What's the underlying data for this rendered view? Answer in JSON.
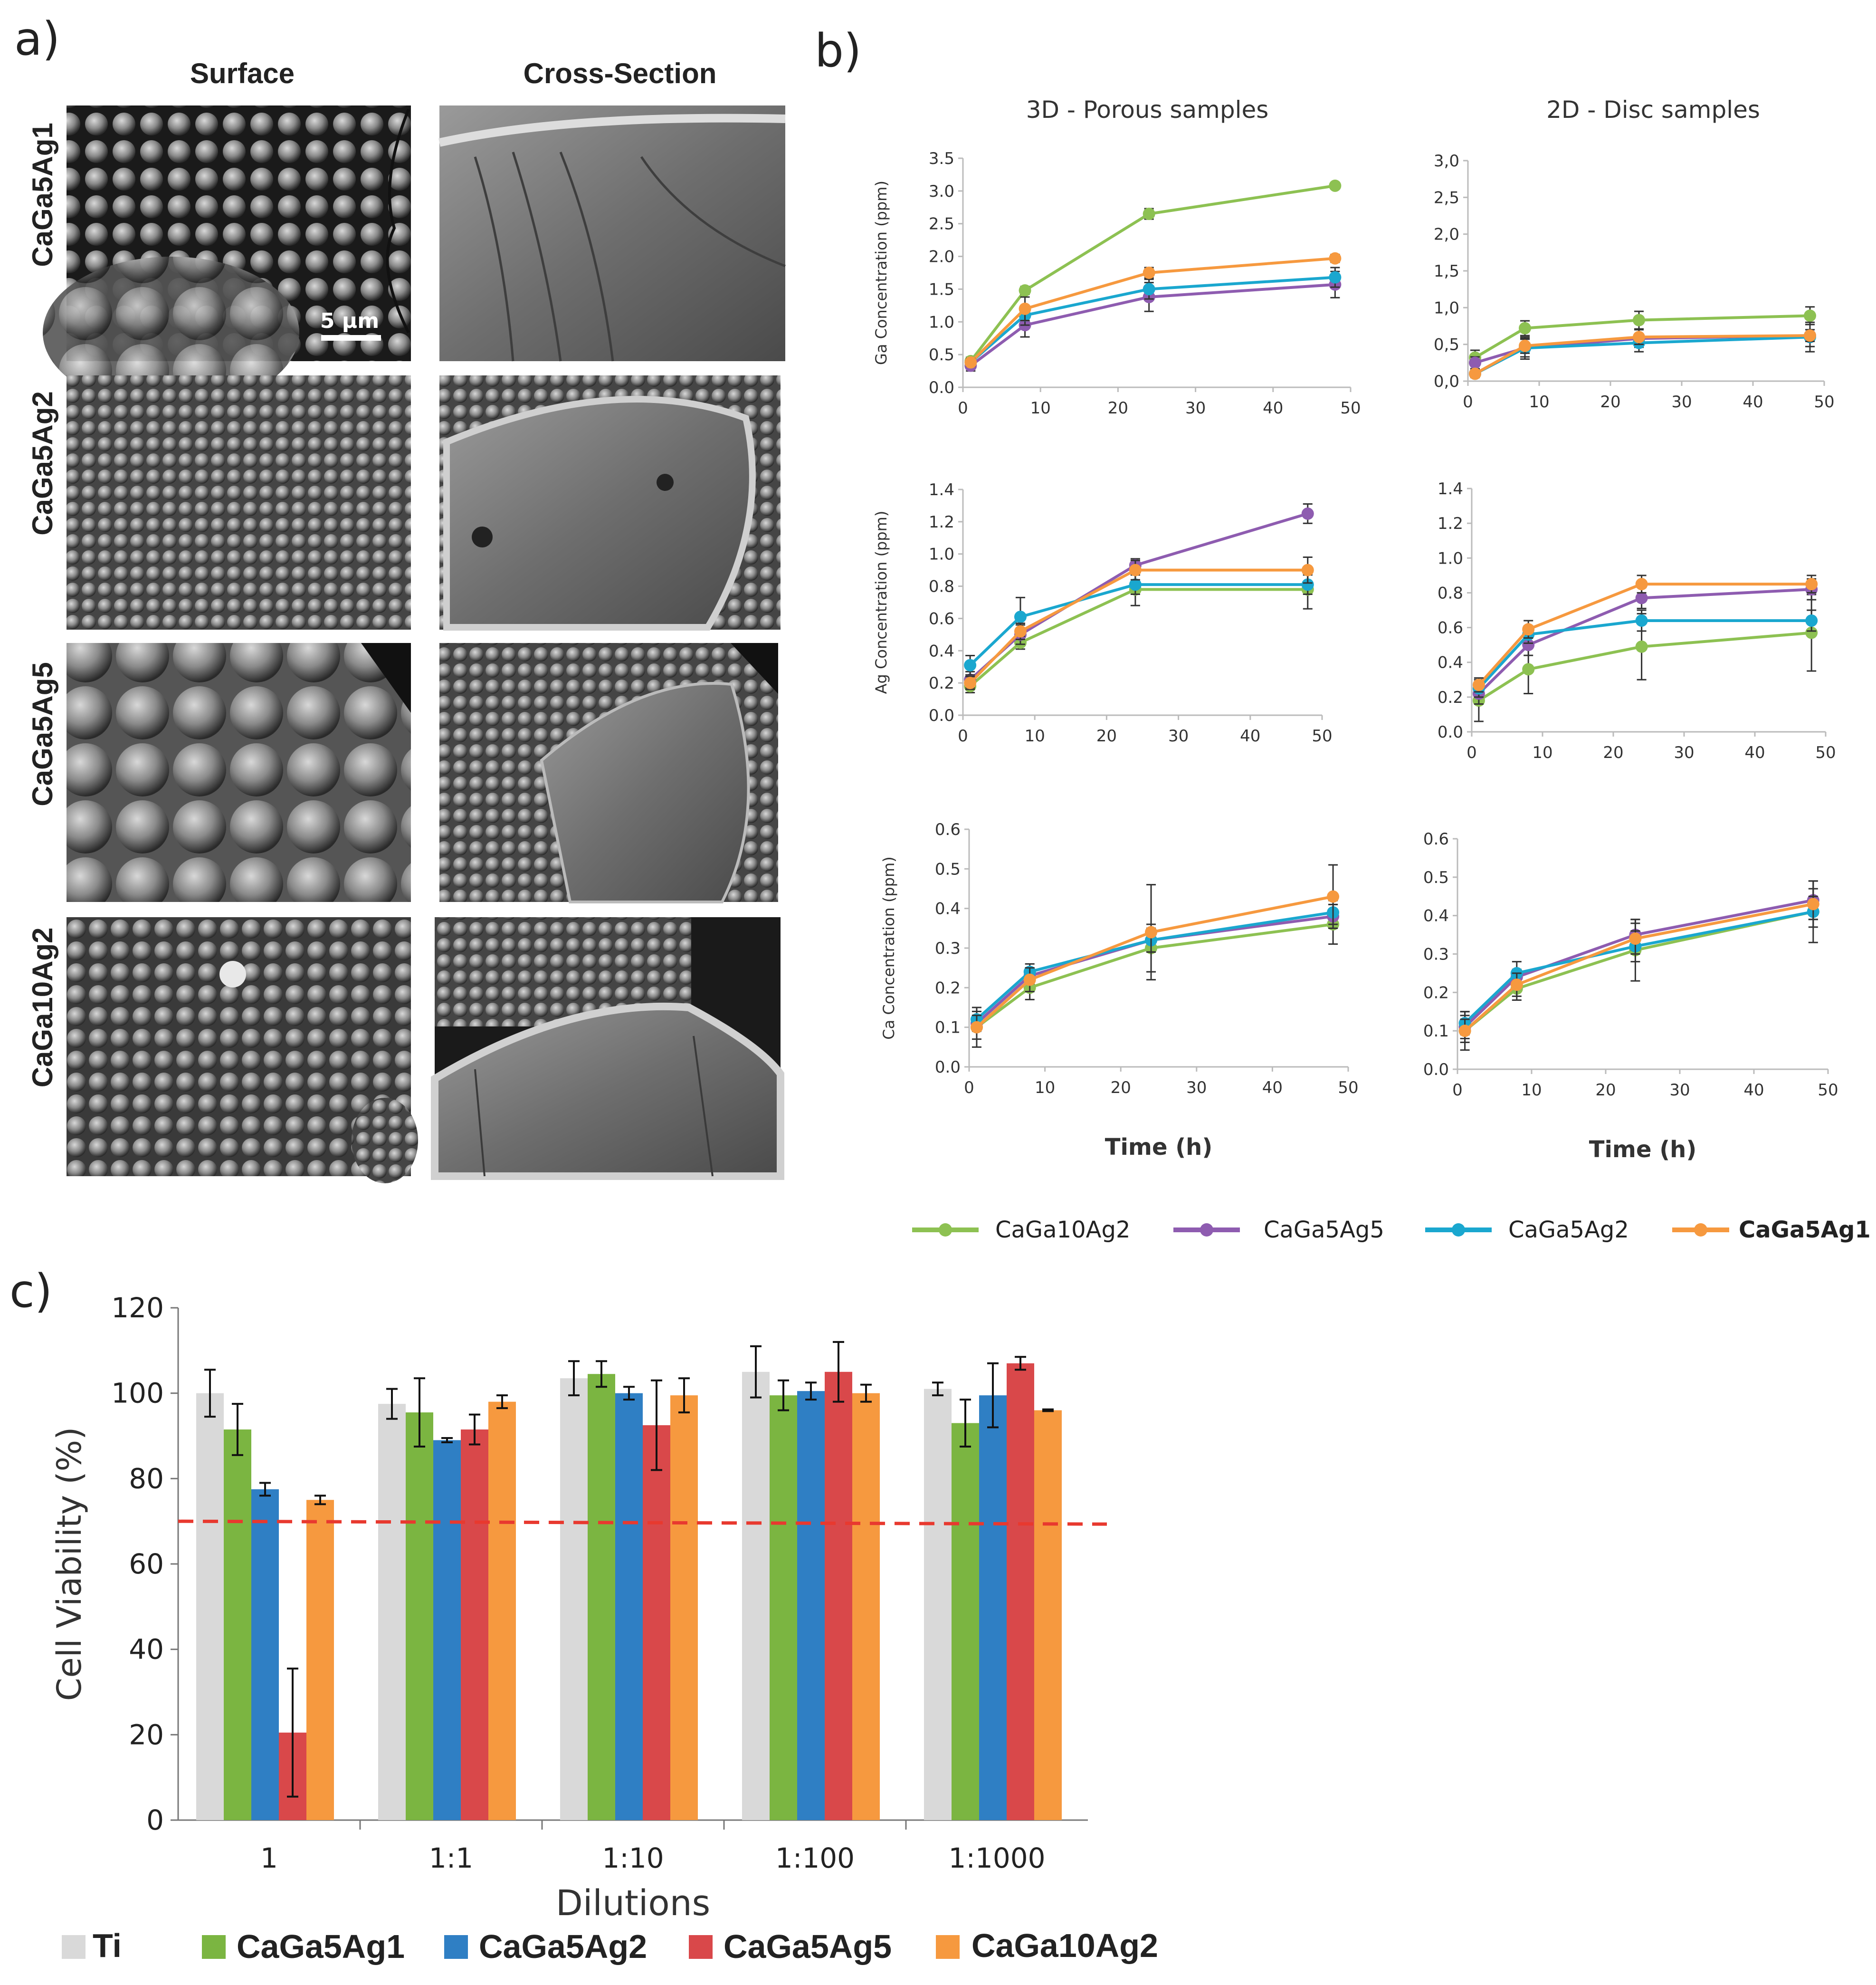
{
  "panels": {
    "a": "a)",
    "b": "b)",
    "c": "c)"
  },
  "sem": {
    "columns": [
      "Surface",
      "Cross-Section"
    ],
    "rows": [
      "CaGa5Ag1",
      "CaGa5Ag2",
      "CaGa5Ag5",
      "CaGa10Ag2"
    ],
    "scale_bar": "5 μm",
    "image_names": [
      "sem-surface-image",
      "sem-cross-section-image"
    ]
  },
  "colors": {
    "CaGa10Ag2_line": "#8dc152",
    "CaGa5Ag5_line": "#8e5cb0",
    "CaGa5Ag2_line": "#1aa7cf",
    "CaGa5Ag1_line": "#f6993f",
    "Ti_bar": "#d9d9d9",
    "CaGa5Ag1_bar": "#7bb541",
    "CaGa5Ag2_bar": "#2f7fc4",
    "CaGa5Ag5_bar": "#d9484a",
    "CaGa10Ag2_bar": "#f6993f",
    "threshold_line": "#e8392f"
  },
  "chart_data": [
    {
      "id": "ga3d",
      "type": "line",
      "title": "3D - Porous samples",
      "ylabel": "Ga Concentration (ppm)",
      "xlabel": "",
      "xlim": [
        0,
        50
      ],
      "ylim": [
        0,
        3.5
      ],
      "xticks": [
        "0",
        "10",
        "20",
        "30",
        "40",
        "50"
      ],
      "yticks": [
        "0.0",
        "0.5",
        "1.0",
        "1.5",
        "2.0",
        "2.5",
        "3.0",
        "3.5"
      ],
      "x": [
        1,
        8,
        24,
        48
      ],
      "series": [
        {
          "name": "CaGa10Ag2",
          "values": [
            0.4,
            1.48,
            2.65,
            3.08
          ],
          "err": [
            0.06,
            0.06,
            0.08,
            0.04
          ]
        },
        {
          "name": "CaGa5Ag5",
          "values": [
            0.33,
            0.95,
            1.38,
            1.57
          ],
          "err": [
            0.08,
            0.18,
            0.22,
            0.2
          ]
        },
        {
          "name": "CaGa5Ag2",
          "values": [
            0.38,
            1.1,
            1.5,
            1.68
          ],
          "err": [
            0.06,
            0.15,
            0.15,
            0.15
          ]
        },
        {
          "name": "CaGa5Ag1",
          "values": [
            0.38,
            1.2,
            1.75,
            1.97
          ],
          "err": [
            0.06,
            0.18,
            0.08,
            0.06
          ]
        }
      ]
    },
    {
      "id": "ga2d",
      "type": "line",
      "title": "2D - Disc samples",
      "ylabel": "",
      "xlabel": "",
      "xlim": [
        0,
        50
      ],
      "ylim": [
        0,
        3.0
      ],
      "xticks": [
        "0",
        "10",
        "20",
        "30",
        "40",
        "50"
      ],
      "yticks": [
        "0,0",
        "0,5",
        "1,0",
        "1,5",
        "2,0",
        "2,5",
        "3,0"
      ],
      "x": [
        1,
        8,
        24,
        48
      ],
      "series": [
        {
          "name": "CaGa10Ag2",
          "values": [
            0.32,
            0.72,
            0.83,
            0.89
          ],
          "err": [
            0.1,
            0.1,
            0.12,
            0.12
          ]
        },
        {
          "name": "CaGa5Ag5",
          "values": [
            0.25,
            0.45,
            0.58,
            0.62
          ],
          "err": [
            0.08,
            0.12,
            0.12,
            0.15
          ]
        },
        {
          "name": "CaGa5Ag2",
          "values": [
            0.1,
            0.45,
            0.52,
            0.6
          ],
          "err": [
            0.05,
            0.15,
            0.12,
            0.2
          ]
        },
        {
          "name": "CaGa5Ag1",
          "values": [
            0.1,
            0.48,
            0.6,
            0.62
          ],
          "err": [
            0.05,
            0.1,
            0.1,
            0.08
          ]
        }
      ]
    },
    {
      "id": "ag3d",
      "type": "line",
      "title": "",
      "ylabel": "Ag Concentration (ppm)",
      "xlabel": "",
      "xlim": [
        0,
        50
      ],
      "ylim": [
        0,
        1.4
      ],
      "xticks": [
        "0",
        "10",
        "20",
        "30",
        "40",
        "50"
      ],
      "yticks": [
        "0.0",
        "0.2",
        "0.4",
        "0.6",
        "0.8",
        "1.0",
        "1.2",
        "1.4"
      ],
      "x": [
        1,
        8,
        24,
        48
      ],
      "series": [
        {
          "name": "CaGa10Ag2",
          "values": [
            0.18,
            0.45,
            0.78,
            0.78
          ],
          "err": [
            0.04,
            0.04,
            0.1,
            0.12
          ]
        },
        {
          "name": "CaGa5Ag5",
          "values": [
            0.22,
            0.5,
            0.93,
            1.25
          ],
          "err": [
            0.05,
            0.06,
            0.04,
            0.06
          ]
        },
        {
          "name": "CaGa5Ag2",
          "values": [
            0.31,
            0.61,
            0.81,
            0.81
          ],
          "err": [
            0.06,
            0.12,
            0.06,
            0.06
          ]
        },
        {
          "name": "CaGa5Ag1",
          "values": [
            0.2,
            0.52,
            0.9,
            0.9
          ],
          "err": [
            0.04,
            0.05,
            0.06,
            0.08
          ]
        }
      ]
    },
    {
      "id": "ag2d",
      "type": "line",
      "title": "",
      "ylabel": "",
      "xlabel": "",
      "xlim": [
        0,
        50
      ],
      "ylim": [
        0,
        1.4
      ],
      "xticks": [
        "0",
        "10",
        "20",
        "30",
        "40",
        "50"
      ],
      "yticks": [
        "0.0",
        "0.2",
        "0.4",
        "0.6",
        "0.8",
        "1.0",
        "1.2",
        "1.4"
      ],
      "x": [
        1,
        8,
        24,
        48
      ],
      "series": [
        {
          "name": "CaGa10Ag2",
          "values": [
            0.18,
            0.36,
            0.49,
            0.57
          ],
          "err": [
            0.12,
            0.14,
            0.19,
            0.22
          ]
        },
        {
          "name": "CaGa5Ag5",
          "values": [
            0.22,
            0.5,
            0.77,
            0.82
          ],
          "err": [
            0.06,
            0.06,
            0.06,
            0.06
          ]
        },
        {
          "name": "CaGa5Ag2",
          "values": [
            0.25,
            0.56,
            0.64,
            0.64
          ],
          "err": [
            0.05,
            0.05,
            0.06,
            0.06
          ]
        },
        {
          "name": "CaGa5Ag1",
          "values": [
            0.27,
            0.59,
            0.85,
            0.85
          ],
          "err": [
            0.04,
            0.05,
            0.05,
            0.05
          ]
        }
      ]
    },
    {
      "id": "ca3d",
      "type": "line",
      "title": "",
      "ylabel": "Ca Concentration (ppm)",
      "xlabel": "Time (h)",
      "xlim": [
        0,
        50
      ],
      "ylim": [
        0,
        0.6
      ],
      "xticks": [
        "0",
        "10",
        "20",
        "30",
        "40",
        "50"
      ],
      "yticks": [
        "0.0",
        "0.1",
        "0.2",
        "0.3",
        "0.4",
        "0.5",
        "0.6"
      ],
      "x": [
        1,
        8,
        24,
        48
      ],
      "series": [
        {
          "name": "CaGa10Ag2",
          "values": [
            0.1,
            0.2,
            0.3,
            0.36
          ],
          "err": [
            0.05,
            0.03,
            0.06,
            0.05
          ]
        },
        {
          "name": "CaGa5Ag5",
          "values": [
            0.11,
            0.23,
            0.32,
            0.38
          ],
          "err": [
            0.02,
            0.02,
            0.03,
            0.03
          ]
        },
        {
          "name": "CaGa5Ag2",
          "values": [
            0.12,
            0.24,
            0.32,
            0.39
          ],
          "err": [
            0.02,
            0.02,
            0.03,
            0.03
          ]
        },
        {
          "name": "CaGa5Ag1",
          "values": [
            0.1,
            0.22,
            0.34,
            0.43
          ],
          "err": [
            0.03,
            0.03,
            0.12,
            0.08
          ]
        }
      ]
    },
    {
      "id": "ca2d",
      "type": "line",
      "title": "",
      "ylabel": "",
      "xlabel": "Time (h)",
      "xlim": [
        0,
        50
      ],
      "ylim": [
        0,
        0.6
      ],
      "xticks": [
        "0",
        "10",
        "20",
        "30",
        "40",
        "50"
      ],
      "yticks": [
        "0.0",
        "0.1",
        "0.2",
        "0.3",
        "0.4",
        "0.5",
        "0.6"
      ],
      "x": [
        1,
        8,
        24,
        48
      ],
      "series": [
        {
          "name": "CaGa10Ag2",
          "values": [
            0.1,
            0.21,
            0.31,
            0.41
          ],
          "err": [
            0.05,
            0.03,
            0.08,
            0.08
          ]
        },
        {
          "name": "CaGa5Ag5",
          "values": [
            0.11,
            0.24,
            0.35,
            0.44
          ],
          "err": [
            0.03,
            0.02,
            0.04,
            0.05
          ]
        },
        {
          "name": "CaGa5Ag2",
          "values": [
            0.12,
            0.25,
            0.32,
            0.41
          ],
          "err": [
            0.03,
            0.03,
            0.04,
            0.04
          ]
        },
        {
          "name": "CaGa5Ag1",
          "values": [
            0.1,
            0.22,
            0.34,
            0.43
          ],
          "err": [
            0.03,
            0.03,
            0.04,
            0.04
          ]
        }
      ]
    },
    {
      "id": "viability",
      "type": "bar",
      "ylabel": "Cell Viability (%)",
      "xlabel": "Dilutions",
      "ylim": [
        0,
        120
      ],
      "yticks": [
        "0",
        "20",
        "40",
        "60",
        "80",
        "100",
        "120"
      ],
      "categories": [
        "1",
        "1:1",
        "1:10",
        "1:100",
        "1:1000"
      ],
      "threshold": 70,
      "series": [
        {
          "name": "Ti",
          "values": [
            100,
            97.5,
            103.5,
            105,
            101
          ],
          "err": [
            5.5,
            3.5,
            4,
            6,
            1.5
          ]
        },
        {
          "name": "CaGa5Ag1",
          "values": [
            91.5,
            95.5,
            104.5,
            99.5,
            93
          ],
          "err": [
            6,
            8,
            3,
            3.5,
            5.5
          ]
        },
        {
          "name": "CaGa5Ag2",
          "values": [
            77.5,
            89,
            100,
            100.5,
            99.5
          ],
          "err": [
            1.5,
            0.5,
            1.5,
            2,
            7.5
          ]
        },
        {
          "name": "CaGa5Ag5",
          "values": [
            20.5,
            91.5,
            92.5,
            105,
            107
          ],
          "err": [
            15,
            3.5,
            10.5,
            7,
            1.5
          ]
        },
        {
          "name": "CaGa10Ag2",
          "values": [
            75,
            98,
            99.5,
            100,
            96
          ],
          "err": [
            1,
            1.5,
            4,
            2,
            0.2
          ]
        }
      ]
    }
  ],
  "legend_b": [
    "CaGa10Ag2",
    "CaGa5Ag5",
    "CaGa5Ag2",
    "CaGa5Ag1"
  ],
  "legend_c": [
    "Ti",
    "CaGa5Ag1",
    "CaGa5Ag2",
    "CaGa5Ag5",
    "CaGa10Ag2"
  ]
}
